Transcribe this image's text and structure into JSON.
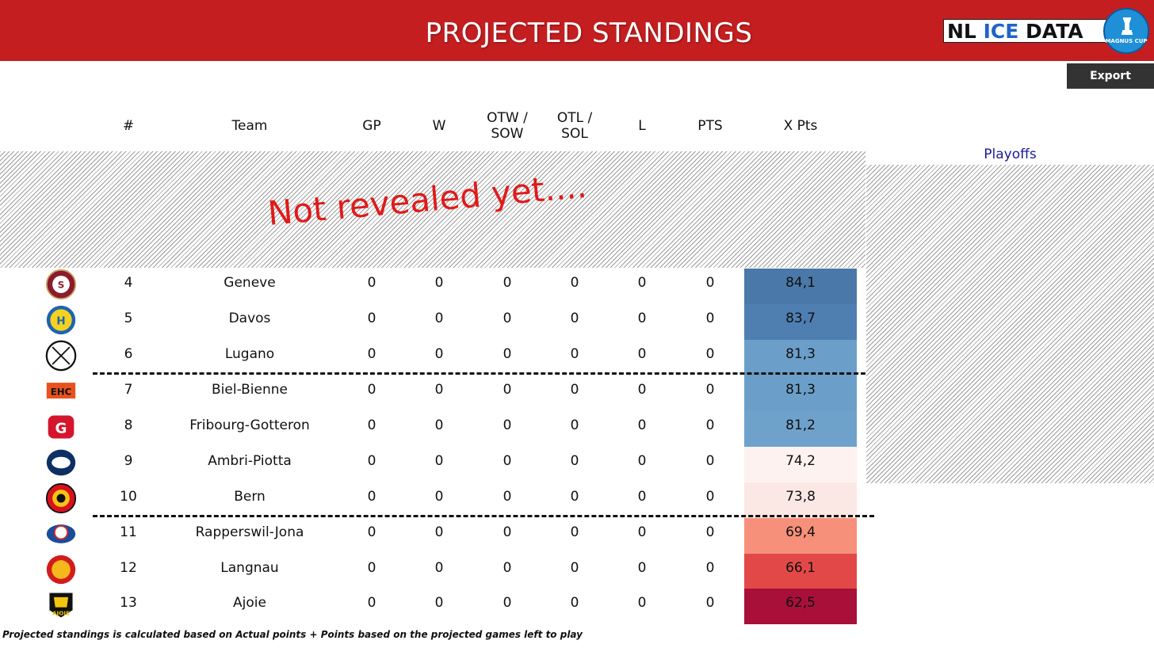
{
  "header": {
    "title": "PROJECTED STANDINGS",
    "brand": {
      "nl": "NL",
      "ice": "ICE",
      "data": "DATA",
      "cup_label": "MAGNUS CUP"
    }
  },
  "toolbar": {
    "export_label": "Export"
  },
  "columns": {
    "rank": "#",
    "team": "Team",
    "gp": "GP",
    "w": "W",
    "otw_line1": "OTW /",
    "otw_line2": "SOW",
    "otl_line1": "OTL /",
    "otl_line2": "SOL",
    "l": "L",
    "pts": "PTS",
    "xpts": "X Pts"
  },
  "playoffs_label": "Playoffs",
  "hidden_overlay_text": "Not revealed yet....",
  "rows": [
    {
      "rank": "4",
      "team": "Geneve",
      "gp": "0",
      "w": "0",
      "otw": "0",
      "otl": "0",
      "l": "0",
      "pts": "0",
      "xpts": "84,1",
      "xpts_color": "#4a78a8",
      "logo": "geneve-logo"
    },
    {
      "rank": "5",
      "team": "Davos",
      "gp": "0",
      "w": "0",
      "otw": "0",
      "otl": "0",
      "l": "0",
      "pts": "0",
      "xpts": "83,7",
      "xpts_color": "#4f7eb1",
      "logo": "davos-logo"
    },
    {
      "rank": "6",
      "team": "Lugano",
      "gp": "0",
      "w": "0",
      "otw": "0",
      "otl": "0",
      "l": "0",
      "pts": "0",
      "xpts": "81,3",
      "xpts_color": "#6b9fc9",
      "logo": "lugano-logo"
    },
    {
      "rank": "7",
      "team": "Biel-Bienne",
      "gp": "0",
      "w": "0",
      "otw": "0",
      "otl": "0",
      "l": "0",
      "pts": "0",
      "xpts": "81,3",
      "xpts_color": "#6b9fc9",
      "logo": "biel-logo"
    },
    {
      "rank": "8",
      "team": "Fribourg-Gotteron",
      "gp": "0",
      "w": "0",
      "otw": "0",
      "otl": "0",
      "l": "0",
      "pts": "0",
      "xpts": "81,2",
      "xpts_color": "#6fa2cb",
      "logo": "fribourg-logo"
    },
    {
      "rank": "9",
      "team": "Ambri-Piotta",
      "gp": "0",
      "w": "0",
      "otw": "0",
      "otl": "0",
      "l": "0",
      "pts": "0",
      "xpts": "74,2",
      "xpts_color": "#fdf2f0",
      "logo": "ambri-logo"
    },
    {
      "rank": "10",
      "team": "Bern",
      "gp": "0",
      "w": "0",
      "otw": "0",
      "otl": "0",
      "l": "0",
      "pts": "0",
      "xpts": "73,8",
      "xpts_color": "#fbe8e5",
      "logo": "bern-logo"
    },
    {
      "rank": "11",
      "team": "Rapperswil-Jona",
      "gp": "0",
      "w": "0",
      "otw": "0",
      "otl": "0",
      "l": "0",
      "pts": "0",
      "xpts": "69,4",
      "xpts_color": "#f7907a",
      "logo": "rapperswil-logo"
    },
    {
      "rank": "12",
      "team": "Langnau",
      "gp": "0",
      "w": "0",
      "otw": "0",
      "otl": "0",
      "l": "0",
      "pts": "0",
      "xpts": "66,1",
      "xpts_color": "#e34848",
      "logo": "langnau-logo"
    },
    {
      "rank": "13",
      "team": "Ajoie",
      "gp": "0",
      "w": "0",
      "otw": "0",
      "otl": "0",
      "l": "0",
      "pts": "0",
      "xpts": "62,5",
      "xpts_color": "#a8103a",
      "logo": "ajoie-logo"
    }
  ],
  "footnote": "Projected standings is calculated based on Actual points + Points based on the projected games left to play"
}
